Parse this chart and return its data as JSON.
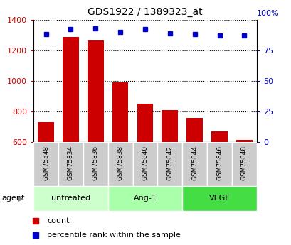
{
  "title": "GDS1922 / 1389323_at",
  "samples": [
    "GSM75548",
    "GSM75834",
    "GSM75836",
    "GSM75838",
    "GSM75840",
    "GSM75842",
    "GSM75844",
    "GSM75846",
    "GSM75848"
  ],
  "counts": [
    730,
    1285,
    1265,
    990,
    850,
    810,
    760,
    672,
    615
  ],
  "percentile_ranks": [
    88,
    92,
    93,
    90,
    92,
    89,
    88,
    87,
    87
  ],
  "ylim_left": [
    600,
    1400
  ],
  "ylim_right": [
    0,
    100
  ],
  "yticks_left": [
    600,
    800,
    1000,
    1200,
    1400
  ],
  "yticks_right": [
    0,
    25,
    50,
    75
  ],
  "groups": [
    {
      "label": "untreated",
      "indices": [
        0,
        1,
        2
      ],
      "color": "#ccffcc"
    },
    {
      "label": "Ang-1",
      "indices": [
        3,
        4,
        5
      ],
      "color": "#aaffaa"
    },
    {
      "label": "VEGF",
      "indices": [
        6,
        7,
        8
      ],
      "color": "#44dd44"
    }
  ],
  "bar_color": "#cc0000",
  "dot_color": "#0000cc",
  "bar_bottom": 600,
  "tick_color_left": "#cc0000",
  "tick_color_right": "#0000cc",
  "legend_count_color": "#cc0000",
  "legend_pct_color": "#0000cc",
  "agent_label": "agent",
  "bg_bar_color": "#cccccc",
  "fig_width": 4.1,
  "fig_height": 3.45,
  "dpi": 100
}
